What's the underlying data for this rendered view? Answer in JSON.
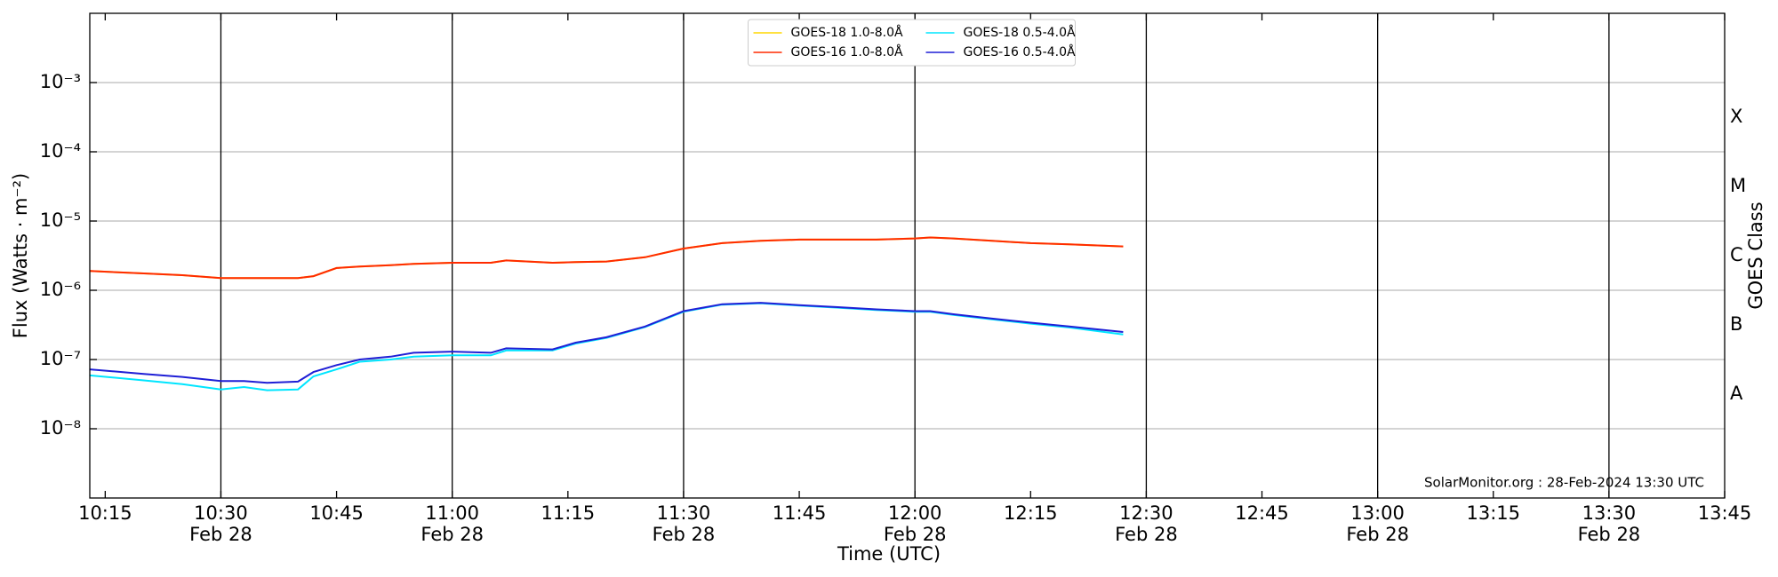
{
  "chart_data": {
    "type": "line",
    "x_label": "Time (UTC)",
    "y_label": "Flux (Watts · m⁻²)",
    "y2_label": "GOES Class",
    "annotation": "SolarMonitor.org : 28-Feb-2024 13:30 UTC",
    "x": [
      "10:13",
      "10:20",
      "10:25",
      "10:30",
      "10:33",
      "10:36",
      "10:40",
      "10:42",
      "10:45",
      "10:48",
      "10:52",
      "10:55",
      "11:00",
      "11:05",
      "11:07",
      "11:13",
      "11:16",
      "11:20",
      "11:25",
      "11:30",
      "11:35",
      "11:40",
      "11:45",
      "11:50",
      "11:55",
      "12:00",
      "12:02",
      "12:05",
      "12:10",
      "12:15",
      "12:20",
      "12:27"
    ],
    "series": [
      {
        "name": "GOES-18 1.0-8.0Å",
        "color": "#ffd700",
        "values": [
          1.9e-06,
          1.75e-06,
          1.65e-06,
          1.5e-06,
          1.5e-06,
          1.5e-06,
          1.5e-06,
          1.6e-06,
          2.1e-06,
          2.2e-06,
          2.3e-06,
          2.4e-06,
          2.5e-06,
          2.5e-06,
          2.7e-06,
          2.5e-06,
          2.55e-06,
          2.6e-06,
          3e-06,
          4e-06,
          4.8e-06,
          5.2e-06,
          5.4e-06,
          5.4e-06,
          5.4e-06,
          5.6e-06,
          5.8e-06,
          5.6e-06,
          5.2e-06,
          4.8e-06,
          4.6e-06,
          4.3e-06
        ]
      },
      {
        "name": "GOES-16 1.0-8.0Å",
        "color": "#ff2a00",
        "values": [
          1.9e-06,
          1.75e-06,
          1.65e-06,
          1.5e-06,
          1.5e-06,
          1.5e-06,
          1.5e-06,
          1.6e-06,
          2.1e-06,
          2.2e-06,
          2.3e-06,
          2.4e-06,
          2.5e-06,
          2.5e-06,
          2.7e-06,
          2.5e-06,
          2.55e-06,
          2.6e-06,
          3e-06,
          4e-06,
          4.8e-06,
          5.2e-06,
          5.4e-06,
          5.4e-06,
          5.4e-06,
          5.6e-06,
          5.8e-06,
          5.6e-06,
          5.2e-06,
          4.8e-06,
          4.6e-06,
          4.3e-06
        ]
      },
      {
        "name": "GOES-18 0.5-4.0Å",
        "color": "#00e5ff",
        "values": [
          5.9e-08,
          5e-08,
          4.4e-08,
          3.7e-08,
          4e-08,
          3.6e-08,
          3.7e-08,
          5.7e-08,
          7.2e-08,
          9.3e-08,
          1e-07,
          1.1e-07,
          1.15e-07,
          1.15e-07,
          1.35e-07,
          1.35e-07,
          1.7e-07,
          2.05e-07,
          2.95e-07,
          4.9e-07,
          6.2e-07,
          6.5e-07,
          6e-07,
          5.6e-07,
          5.2e-07,
          4.9e-07,
          4.9e-07,
          4.4e-07,
          3.8e-07,
          3.3e-07,
          2.9e-07,
          2.3e-07
        ]
      },
      {
        "name": "GOES-16 0.5-4.0Å",
        "color": "#1f1fd6",
        "values": [
          7.2e-08,
          6.2e-08,
          5.6e-08,
          4.9e-08,
          4.9e-08,
          4.6e-08,
          4.8e-08,
          6.6e-08,
          8.3e-08,
          1e-07,
          1.1e-07,
          1.25e-07,
          1.3e-07,
          1.25e-07,
          1.45e-07,
          1.4e-07,
          1.75e-07,
          2.1e-07,
          3e-07,
          5e-07,
          6.3e-07,
          6.6e-07,
          6.1e-07,
          5.7e-07,
          5.3e-07,
          5e-07,
          5e-07,
          4.5e-07,
          3.9e-07,
          3.4e-07,
          3e-07,
          2.5e-07
        ]
      }
    ],
    "xlim": [
      "10:13",
      "13:45"
    ],
    "xticks": [
      {
        "value": "10:15",
        "label": "10:15"
      },
      {
        "value": "10:30",
        "label": "10:30\nFeb 28"
      },
      {
        "value": "10:45",
        "label": "10:45"
      },
      {
        "value": "11:00",
        "label": "11:00\nFeb 28"
      },
      {
        "value": "11:15",
        "label": "11:15"
      },
      {
        "value": "11:30",
        "label": "11:30\nFeb 28"
      },
      {
        "value": "11:45",
        "label": "11:45"
      },
      {
        "value": "12:00",
        "label": "12:00\nFeb 28"
      },
      {
        "value": "12:15",
        "label": "12:15"
      },
      {
        "value": "12:30",
        "label": "12:30\nFeb 28"
      },
      {
        "value": "12:45",
        "label": "12:45"
      },
      {
        "value": "13:00",
        "label": "13:00\nFeb 28"
      },
      {
        "value": "13:15",
        "label": "13:15"
      },
      {
        "value": "13:30",
        "label": "13:30\nFeb 28"
      },
      {
        "value": "13:45",
        "label": "13:45"
      }
    ],
    "ylim": [
      1e-09,
      0.01
    ],
    "log_y": true,
    "grid": true,
    "legend": "upper center",
    "yticks": [
      {
        "value": 1e-08,
        "label": "10⁻⁸"
      },
      {
        "value": 1e-07,
        "label": "10⁻⁷"
      },
      {
        "value": 1e-06,
        "label": "10⁻⁶"
      },
      {
        "value": 1e-05,
        "label": "10⁻⁵"
      },
      {
        "value": 0.0001,
        "label": "10⁻⁴"
      },
      {
        "value": 0.001,
        "label": "10⁻³"
      }
    ],
    "y2lim": [
      1e-09,
      0.01
    ],
    "y2ticks": [
      {
        "value": 3.16e-08,
        "label": "A"
      },
      {
        "value": 3.16e-07,
        "label": "B"
      },
      {
        "value": 3.16e-06,
        "label": "C"
      },
      {
        "value": 3.16e-05,
        "label": "M"
      },
      {
        "value": 0.000316,
        "label": "X"
      }
    ]
  }
}
